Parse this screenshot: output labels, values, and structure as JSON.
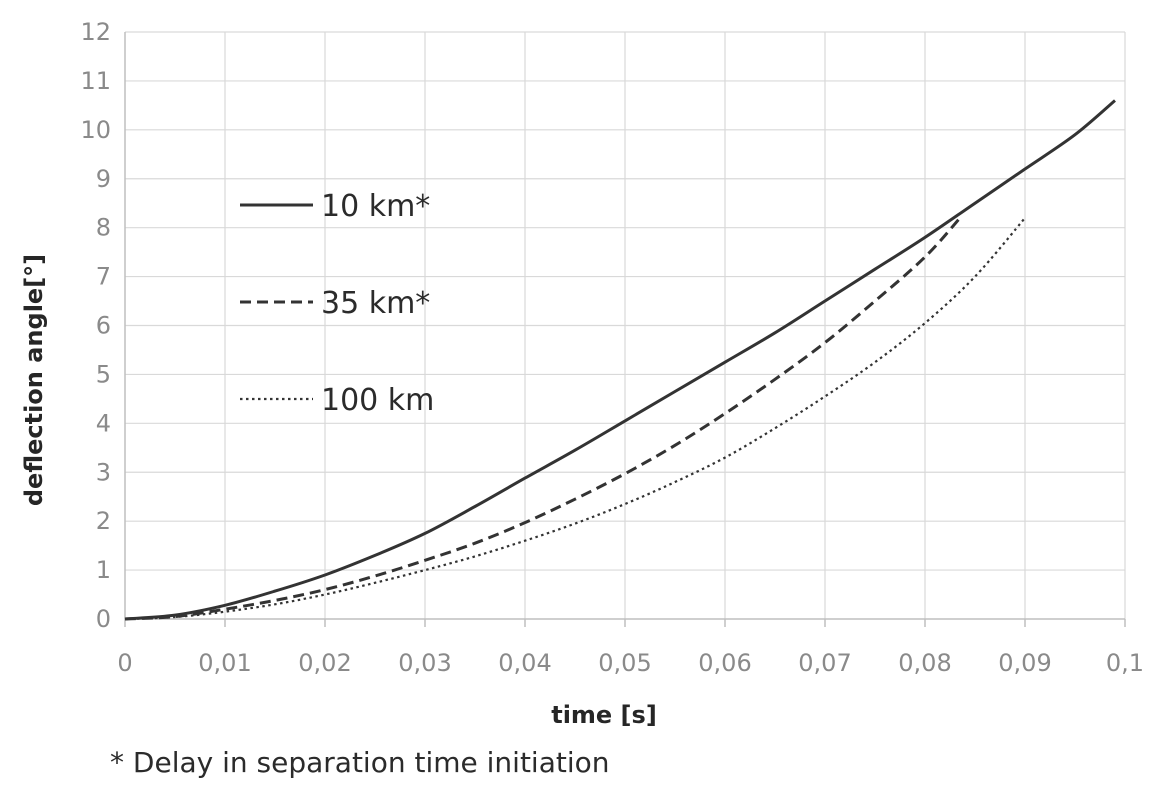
{
  "chart_data": {
    "type": "line",
    "title": "",
    "xlabel": "time [s]",
    "ylabel": "deflection angle[°]",
    "xlim": [
      0,
      0.1
    ],
    "ylim": [
      0,
      12
    ],
    "x_ticks": [
      "0",
      "0,01",
      "0,02",
      "0,03",
      "0,04",
      "0,05",
      "0,06",
      "0,07",
      "0,08",
      "0,09",
      "0,1"
    ],
    "y_ticks": [
      "0",
      "1",
      "2",
      "3",
      "4",
      "5",
      "6",
      "7",
      "8",
      "9",
      "10",
      "11",
      "12"
    ],
    "grid": "vertical and horizontal",
    "legend_placement": "upper-left, inside plot",
    "series": [
      {
        "name": "10 km*",
        "style": "solid",
        "color": "#333333",
        "x": [
          0,
          0.005,
          0.01,
          0.015,
          0.02,
          0.025,
          0.03,
          0.035,
          0.04,
          0.045,
          0.05,
          0.055,
          0.06,
          0.065,
          0.07,
          0.075,
          0.08,
          0.085,
          0.09,
          0.095,
          0.099
        ],
        "y": [
          0,
          0.08,
          0.28,
          0.57,
          0.9,
          1.3,
          1.75,
          2.3,
          2.88,
          3.45,
          4.05,
          4.65,
          5.25,
          5.85,
          6.5,
          7.15,
          7.8,
          8.5,
          9.2,
          9.9,
          10.6
        ]
      },
      {
        "name": "35 km*",
        "style": "dashed",
        "color": "#333333",
        "x": [
          0,
          0.005,
          0.01,
          0.015,
          0.02,
          0.025,
          0.03,
          0.035,
          0.04,
          0.045,
          0.05,
          0.055,
          0.06,
          0.065,
          0.07,
          0.075,
          0.08,
          0.0835
        ],
        "y": [
          0,
          0.05,
          0.2,
          0.38,
          0.6,
          0.88,
          1.2,
          1.55,
          1.97,
          2.45,
          2.97,
          3.55,
          4.2,
          4.9,
          5.65,
          6.5,
          7.4,
          8.2
        ]
      },
      {
        "name": "100 km",
        "style": "dotted",
        "color": "#333333",
        "x": [
          0,
          0.005,
          0.01,
          0.015,
          0.02,
          0.025,
          0.03,
          0.035,
          0.04,
          0.045,
          0.05,
          0.055,
          0.06,
          0.065,
          0.07,
          0.075,
          0.08,
          0.085,
          0.09
        ],
        "y": [
          0,
          0.04,
          0.15,
          0.3,
          0.5,
          0.74,
          1.0,
          1.28,
          1.6,
          1.95,
          2.35,
          2.8,
          3.3,
          3.9,
          4.55,
          5.25,
          6.05,
          7.0,
          8.2
        ]
      }
    ]
  },
  "footnote": "* Delay in separation time initiation"
}
